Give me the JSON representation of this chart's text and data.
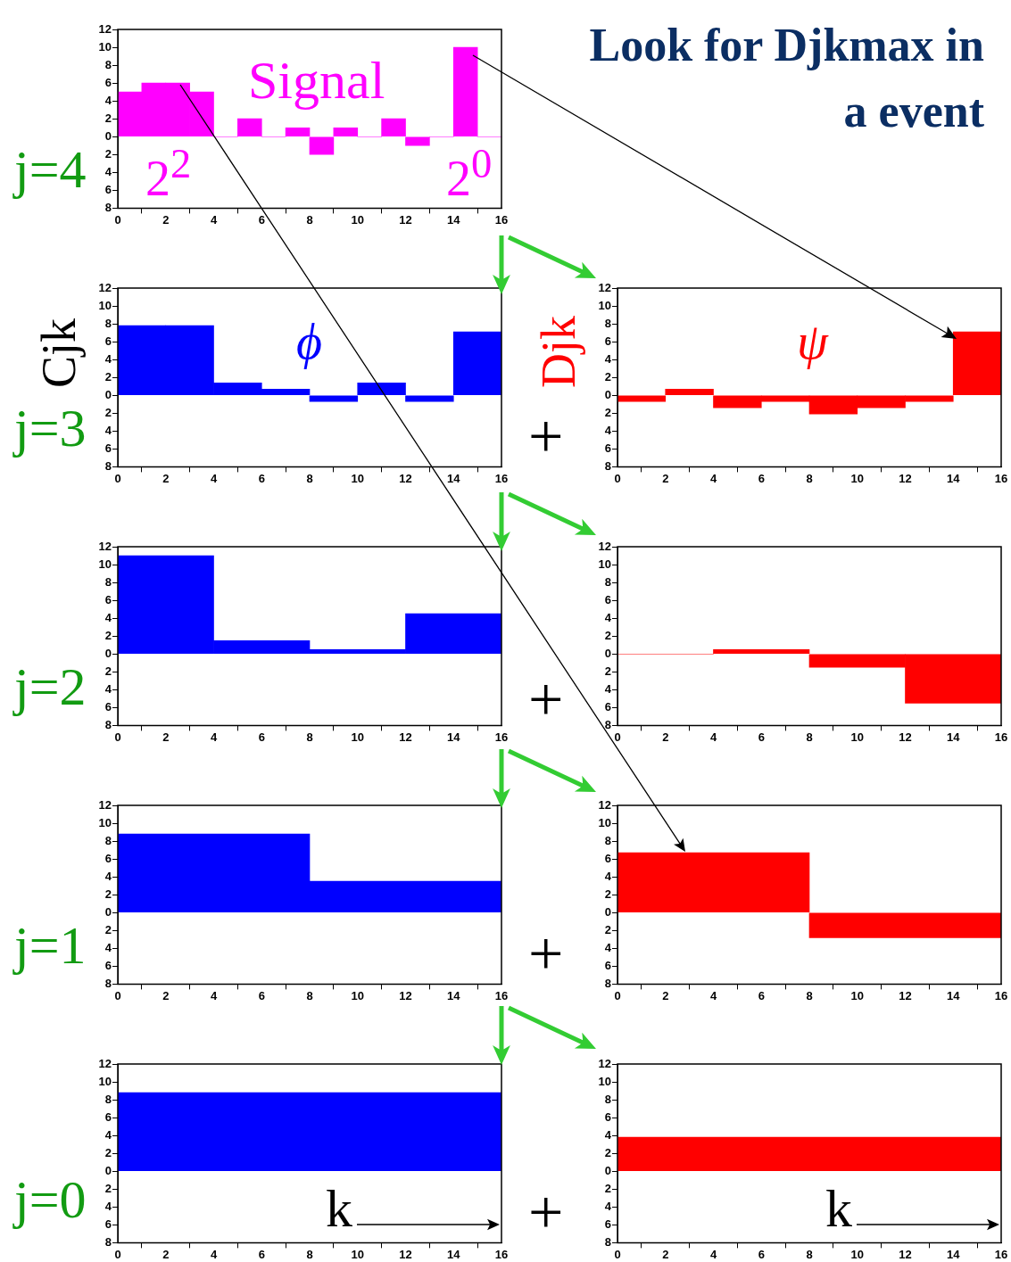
{
  "chart_data": [
    {
      "type": "histogram",
      "bins": [
        0,
        1,
        2,
        3,
        4,
        5,
        6,
        7,
        8,
        9,
        10,
        11,
        12,
        13,
        14,
        15,
        16
      ],
      "values": [
        5,
        6,
        6,
        5,
        0,
        2,
        0,
        1,
        -2,
        1,
        0,
        2,
        -1,
        0,
        10,
        0
      ],
      "color": "#ff00ff",
      "xlim": [
        0,
        16
      ],
      "xticks": [
        0,
        2,
        4,
        6,
        8,
        10,
        12,
        14,
        16
      ],
      "ylim": [
        -8,
        12
      ],
      "yticks": [
        {
          "value": -8,
          "label": "8"
        },
        {
          "value": -6,
          "label": "6"
        },
        {
          "value": -4,
          "label": "4"
        },
        {
          "value": -2,
          "label": "2"
        },
        0,
        2,
        4,
        6,
        8,
        10,
        12
      ],
      "annotations": [
        "Signal",
        "2$^{2}$",
        "2$^{0}$",
        "j=4"
      ]
    },
    {
      "type": "histogram",
      "ylabel": "Cjk",
      "bins": [
        0,
        2,
        4,
        6,
        8,
        10,
        12,
        14,
        16
      ],
      "values": [
        7.8,
        7.8,
        1.4,
        0.7,
        -0.7,
        1.4,
        -0.7,
        7.1
      ],
      "color": "#0000ff",
      "xlim": [
        0,
        16
      ],
      "xticks": [
        0,
        2,
        4,
        6,
        8,
        10,
        12,
        14,
        16
      ],
      "ylim": [
        -8,
        12
      ],
      "yticks": [
        {
          "value": -8,
          "label": "8"
        },
        {
          "value": -6,
          "label": "6"
        },
        {
          "value": -4,
          "label": "4"
        },
        {
          "value": -2,
          "label": "2"
        },
        0,
        2,
        4,
        6,
        8,
        10,
        12
      ],
      "annotations": [
        "ϕ",
        "j=3"
      ]
    },
    {
      "type": "histogram",
      "title": "Look for Djkmax in a event",
      "ylabel": "Djk",
      "bins": [
        0,
        2,
        4,
        6,
        8,
        10,
        12,
        14,
        16
      ],
      "values": [
        -0.7,
        0.7,
        -1.4,
        -0.7,
        -2.1,
        -1.4,
        -0.7,
        7.1
      ],
      "color": "#ff0000",
      "xlim": [
        0,
        16
      ],
      "xticks": [
        0,
        2,
        4,
        6,
        8,
        10,
        12,
        14,
        16
      ],
      "ylim": [
        -8,
        12
      ],
      "yticks": [
        {
          "value": -8,
          "label": "8"
        },
        {
          "value": -6,
          "label": "6"
        },
        {
          "value": -4,
          "label": "4"
        },
        {
          "value": -2,
          "label": "2"
        },
        0,
        2,
        4,
        6,
        8,
        10,
        12
      ],
      "annotations": [
        "ψ",
        "+"
      ]
    },
    {
      "type": "histogram",
      "bins": [
        0,
        4,
        8,
        12,
        16
      ],
      "values": [
        11,
        1.5,
        0.5,
        4.5
      ],
      "color": "#0000ff",
      "xlim": [
        0,
        16
      ],
      "xticks": [
        0,
        2,
        4,
        6,
        8,
        10,
        12,
        14,
        16
      ],
      "ylim": [
        -8,
        12
      ],
      "yticks": [
        {
          "value": -8,
          "label": "8"
        },
        {
          "value": -6,
          "label": "6"
        },
        {
          "value": -4,
          "label": "4"
        },
        {
          "value": -2,
          "label": "2"
        },
        0,
        2,
        4,
        6,
        8,
        10,
        12
      ],
      "annotations": [
        "j=2"
      ]
    },
    {
      "type": "histogram",
      "bins": [
        0,
        4,
        8,
        12,
        16
      ],
      "values": [
        0,
        0.5,
        -1.5,
        -5.5
      ],
      "color": "#ff0000",
      "xlim": [
        0,
        16
      ],
      "xticks": [
        0,
        2,
        4,
        6,
        8,
        10,
        12,
        14,
        16
      ],
      "ylim": [
        -8,
        12
      ],
      "yticks": [
        {
          "value": -8,
          "label": "8"
        },
        {
          "value": -6,
          "label": "6"
        },
        {
          "value": -4,
          "label": "4"
        },
        {
          "value": -2,
          "label": "2"
        },
        0,
        2,
        4,
        6,
        8,
        10,
        12
      ],
      "annotations": [
        "+"
      ]
    },
    {
      "type": "histogram",
      "bins": [
        0,
        8,
        16
      ],
      "values": [
        8.8,
        3.5
      ],
      "color": "#0000ff",
      "xlim": [
        0,
        16
      ],
      "xticks": [
        0,
        2,
        4,
        6,
        8,
        10,
        12,
        14,
        16
      ],
      "ylim": [
        -8,
        12
      ],
      "yticks": [
        {
          "value": -8,
          "label": "8"
        },
        {
          "value": -6,
          "label": "6"
        },
        {
          "value": -4,
          "label": "4"
        },
        {
          "value": -2,
          "label": "2"
        },
        0,
        2,
        4,
        6,
        8,
        10,
        12
      ],
      "annotations": [
        "j=1"
      ]
    },
    {
      "type": "histogram",
      "bins": [
        0,
        8,
        16
      ],
      "values": [
        6.7,
        -2.8
      ],
      "color": "#ff0000",
      "xlim": [
        0,
        16
      ],
      "xticks": [
        0,
        2,
        4,
        6,
        8,
        10,
        12,
        14,
        16
      ],
      "ylim": [
        -8,
        12
      ],
      "yticks": [
        {
          "value": -8,
          "label": "8"
        },
        {
          "value": -6,
          "label": "6"
        },
        {
          "value": -4,
          "label": "4"
        },
        {
          "value": -2,
          "label": "2"
        },
        0,
        2,
        4,
        6,
        8,
        10,
        12
      ],
      "annotations": [
        "+"
      ]
    },
    {
      "type": "histogram",
      "bins": [
        0,
        16
      ],
      "values": [
        8.8
      ],
      "color": "#0000ff",
      "xlim": [
        0,
        16
      ],
      "xticks": [
        0,
        2,
        4,
        6,
        8,
        10,
        12,
        14,
        16
      ],
      "ylim": [
        -8,
        12
      ],
      "yticks": [
        {
          "value": -8,
          "label": "8"
        },
        {
          "value": -6,
          "label": "6"
        },
        {
          "value": -4,
          "label": "4"
        },
        {
          "value": -2,
          "label": "2"
        },
        0,
        2,
        4,
        6,
        8,
        10,
        12
      ],
      "annotations": [
        "j=0",
        "k"
      ]
    },
    {
      "type": "histogram",
      "bins": [
        0,
        16
      ],
      "values": [
        3.8
      ],
      "color": "#ff0000",
      "xlim": [
        0,
        16
      ],
      "xticks": [
        0,
        2,
        4,
        6,
        8,
        10,
        12,
        14,
        16
      ],
      "ylim": [
        -8,
        12
      ],
      "yticks": [
        {
          "value": -8,
          "label": "8"
        },
        {
          "value": -6,
          "label": "6"
        },
        {
          "value": -4,
          "label": "4"
        },
        {
          "value": -2,
          "label": "2"
        },
        0,
        2,
        4,
        6,
        8,
        10,
        12
      ],
      "annotations": [
        "+",
        "k"
      ]
    }
  ]
}
